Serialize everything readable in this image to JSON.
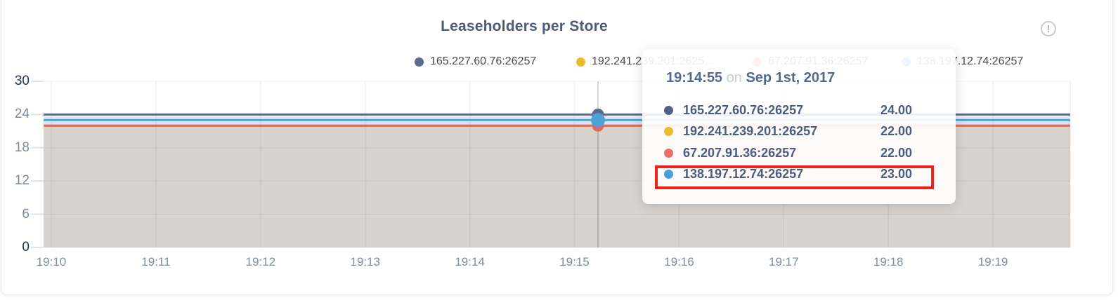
{
  "title": "Leaseholders per Store",
  "info_icon": "!",
  "legend": {
    "items": [
      {
        "label": "165.227.60.76:26257",
        "color": "#5a6c8e"
      },
      {
        "label": "192.241.239.201:2625…",
        "color": "#ecba2d"
      },
      {
        "label": "67.207.91.36:26257",
        "color": "#ed6e66"
      },
      {
        "label": "138.197.12.74:26257",
        "color": "#479fd9"
      }
    ]
  },
  "tooltip": {
    "time": "19:14:55",
    "conjunction": "on",
    "date": "Sep 1st, 2017",
    "rows": [
      {
        "label": "165.227.60.76:26257",
        "value": "24.00",
        "color": "#51608a",
        "highlighted": false
      },
      {
        "label": "192.241.239.201:26257",
        "value": "22.00",
        "color": "#ecba2d",
        "highlighted": false
      },
      {
        "label": "67.207.91.36:26257",
        "value": "22.00",
        "color": "#ed6e66",
        "highlighted": false
      },
      {
        "label": "138.197.12.74:26257",
        "value": "23.00",
        "color": "#479fd9",
        "highlighted": true
      }
    ]
  },
  "chart_data": {
    "type": "area",
    "title": "Leaseholders per Store",
    "xlabel": "",
    "ylabel": "",
    "x_ticks": [
      "19:10",
      "19:11",
      "19:12",
      "19:13",
      "19:14",
      "19:15",
      "19:16",
      "19:17",
      "19:18",
      "19:19"
    ],
    "y_ticks": [
      0,
      6,
      12,
      18,
      24,
      30
    ],
    "ylim": [
      0,
      30
    ],
    "grid": true,
    "legend_position": "top",
    "series": [
      {
        "name": "165.227.60.76:26257",
        "color": "#5a6c8e",
        "fill": "rgba(144,164,198,0.22)",
        "value": 24
      },
      {
        "name": "192.241.239.201:26257",
        "color": "#ecba2d",
        "fill": "rgba(236,190,45,0.12)",
        "value": 22
      },
      {
        "name": "67.207.91.36:26257",
        "color": "#dc6a64",
        "fill": "rgba(220,106,100,0.11)",
        "value": 22
      },
      {
        "name": "138.197.12.74:26257",
        "color": "#4f9fd8",
        "fill": "rgba(79,159,216,0.08)",
        "value": 23
      }
    ],
    "hover_point": {
      "time": "19:14:55",
      "date": "Sep 1st, 2017",
      "values": [
        24.0,
        22.0,
        22.0,
        23.0
      ]
    }
  }
}
